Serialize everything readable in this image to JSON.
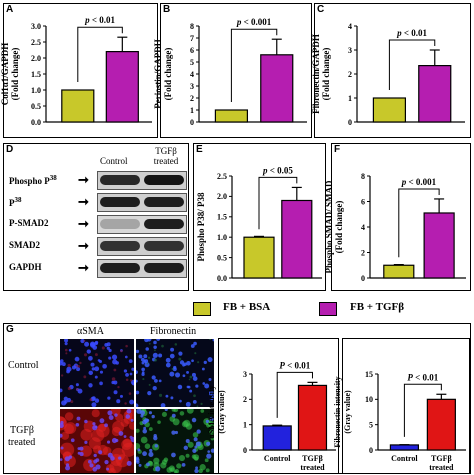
{
  "colors": {
    "bsa": "#c8c82a",
    "tgf": "#b51eb0",
    "blue": "#2222dd",
    "red": "#e01515",
    "border": "#000000"
  },
  "legend": {
    "bsa": "FB + BSA",
    "tgf": "FB + TGFβ"
  },
  "panel_letters": {
    "a": "A",
    "b": "B",
    "c": "C",
    "d": "D",
    "e": "E",
    "f": "F",
    "g": "G"
  },
  "blot": {
    "col_control": "Control",
    "col_tgf": "TGFβ treated",
    "rows": [
      {
        "label": "Phospho P",
        "sup": "38"
      },
      {
        "label": "P",
        "sup": "38"
      },
      {
        "label": "P-SMAD2",
        "sup": ""
      },
      {
        "label": "SMAD2",
        "sup": ""
      },
      {
        "label": "GAPDH",
        "sup": ""
      }
    ]
  },
  "micro": {
    "col_asma": "αSMA",
    "col_fn": "Fibronectin",
    "row_control": "Control",
    "row_tgf_1": "TGFβ",
    "row_tgf_2": "treated"
  },
  "chart_data": [
    {
      "type": "bar",
      "id": "A",
      "categories": [
        "FB + BSA",
        "FB + TGFβ"
      ],
      "values": [
        1.0,
        2.2
      ],
      "errors": [
        0,
        0.45
      ],
      "ylabel": [
        "Col1α1/GAPDH",
        "(Fold change)"
      ],
      "ylim": [
        0,
        3.0
      ],
      "ticks": [
        "0.0",
        "0.5",
        "1.0",
        "1.5",
        "2.0",
        "2.5",
        "3.0"
      ],
      "sig": "p < 0.01",
      "colors": [
        "#c8c82a",
        "#b51eb0"
      ]
    },
    {
      "type": "bar",
      "id": "B",
      "categories": [
        "FB + BSA",
        "FB + TGFβ"
      ],
      "values": [
        1.0,
        5.6
      ],
      "errors": [
        0,
        1.3
      ],
      "ylabel": [
        "Periostin/GAPDH",
        "(Fold change)"
      ],
      "ylim": [
        0,
        8
      ],
      "ticks": [
        "0",
        "1",
        "2",
        "3",
        "4",
        "5",
        "6",
        "7",
        "8"
      ],
      "sig": "p < 0.001",
      "colors": [
        "#c8c82a",
        "#b51eb0"
      ]
    },
    {
      "type": "bar",
      "id": "C",
      "categories": [
        "FB + BSA",
        "FB + TGFβ"
      ],
      "values": [
        1.0,
        2.35
      ],
      "errors": [
        0,
        0.65
      ],
      "ylabel": [
        "Fibronectin/GAPDH",
        "(Fold change)"
      ],
      "ylim": [
        0,
        4
      ],
      "ticks": [
        "0",
        "1",
        "2",
        "3",
        "4"
      ],
      "sig": "p < 0.01",
      "colors": [
        "#c8c82a",
        "#b51eb0"
      ]
    },
    {
      "type": "bar",
      "id": "E",
      "categories": [
        "FB + BSA",
        "FB + TGFβ"
      ],
      "values": [
        1.0,
        1.9
      ],
      "errors": [
        0.02,
        0.32
      ],
      "ylabel": [
        "Phospho P38/ P38",
        ""
      ],
      "ylim": [
        0,
        2.5
      ],
      "ticks": [
        "0.0",
        "0.5",
        "1.0",
        "1.5",
        "2.0",
        "2.5"
      ],
      "sig": "p < 0.05",
      "colors": [
        "#c8c82a",
        "#b51eb0"
      ]
    },
    {
      "type": "bar",
      "id": "F",
      "categories": [
        "FB + BSA",
        "FB + TGFβ"
      ],
      "values": [
        1.0,
        5.1
      ],
      "errors": [
        0.05,
        1.1
      ],
      "ylabel": [
        "Phospho SMAD/ SMAD",
        "(Fold change)"
      ],
      "ylim": [
        0,
        8
      ],
      "ticks": [
        "0",
        "2",
        "4",
        "6",
        "8"
      ],
      "sig": "p < 0.001",
      "colors": [
        "#c8c82a",
        "#b51eb0"
      ]
    },
    {
      "type": "bar",
      "id": "G1",
      "categories": [
        "Control",
        "TGFβ treated"
      ],
      "values": [
        0.95,
        2.55
      ],
      "errors": [
        0.03,
        0.12
      ],
      "ylabel": [
        "αSMA intensity",
        "(Gray value)"
      ],
      "ylim": [
        0,
        3
      ],
      "ticks": [
        "0",
        "1",
        "2",
        "3"
      ],
      "sig": "P < 0.01",
      "colors": [
        "#2222dd",
        "#e01515"
      ]
    },
    {
      "type": "bar",
      "id": "G2",
      "categories": [
        "Control",
        "TGFβ treated"
      ],
      "values": [
        1.0,
        10.0
      ],
      "errors": [
        0.05,
        1.0
      ],
      "ylabel": [
        "Fibronectin intensity",
        "(Gray value)"
      ],
      "ylim": [
        0,
        15
      ],
      "ticks": [
        "0",
        "5",
        "10",
        "15"
      ],
      "sig": "P < 0.01",
      "colors": [
        "#2222dd",
        "#e01515"
      ]
    }
  ]
}
